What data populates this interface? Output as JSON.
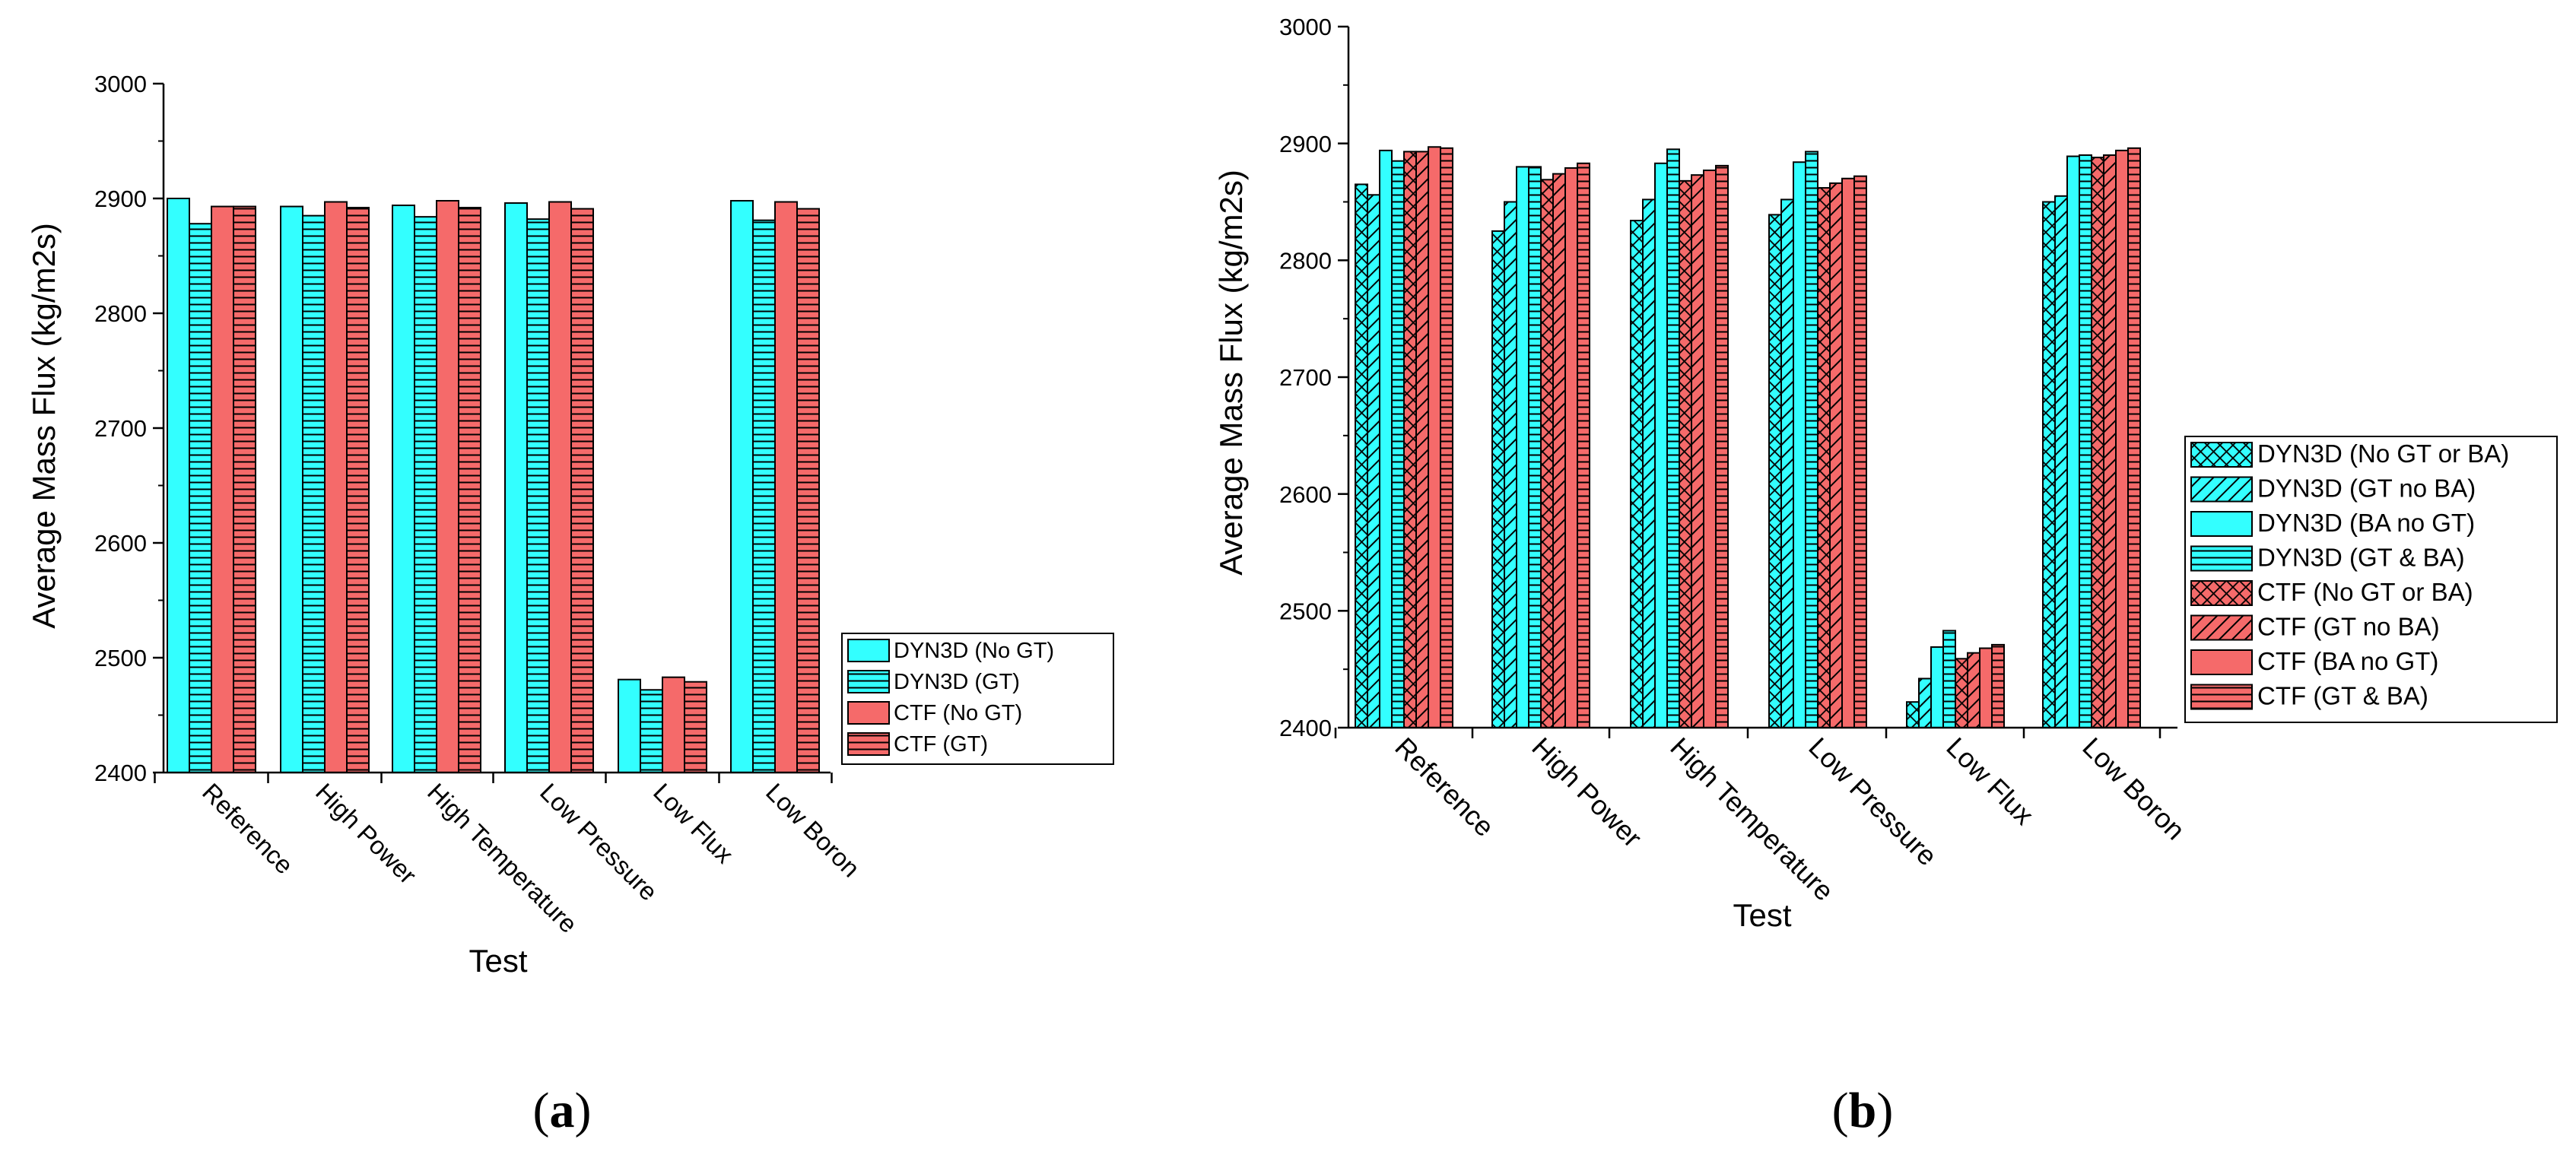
{
  "colors": {
    "dyn3d": "#33FFFF",
    "ctf": "#F56A6A",
    "stroke": "#000000"
  },
  "panels": {
    "a": {
      "label_open": "(",
      "label_letter": "a",
      "label_close": ")"
    },
    "b": {
      "label_open": "(",
      "label_letter": "b",
      "label_close": ")"
    }
  },
  "chart_data": [
    {
      "type": "bar",
      "title": "",
      "xlabel": "Test",
      "ylabel": "Average Mass Flux (kg/m2s)",
      "ylim": [
        2400,
        3000
      ],
      "yticks": [
        2400,
        2500,
        2600,
        2700,
        2800,
        2900,
        3000
      ],
      "ytick_labels": [
        "2400",
        "2500",
        "2600",
        "2700",
        "2800",
        "2900",
        "3000"
      ],
      "categories": [
        "Reference",
        "High Power",
        "High Temperature",
        "Low Pressure",
        "Low Flux",
        "Low Boron"
      ],
      "legend_position": "right",
      "series": [
        {
          "name": "DYN3D (No GT)",
          "color": "#33FFFF",
          "pattern": "solid",
          "values": [
            2900,
            2893,
            2894,
            2896,
            2481,
            2898
          ]
        },
        {
          "name": "DYN3D (GT)",
          "color": "#33FFFF",
          "pattern": "hlines",
          "values": [
            2878,
            2885,
            2884,
            2882,
            2472,
            2881
          ]
        },
        {
          "name": "CTF (No GT)",
          "color": "#F56A6A",
          "pattern": "solid",
          "values": [
            2893,
            2897,
            2898,
            2897,
            2483,
            2897
          ]
        },
        {
          "name": "CTF (GT)",
          "color": "#F56A6A",
          "pattern": "hlines",
          "values": [
            2893,
            2892,
            2892,
            2891,
            2479,
            2891
          ]
        }
      ]
    },
    {
      "type": "bar",
      "title": "",
      "xlabel": "Test",
      "ylabel": "Average Mass Flux (kg/m2s)",
      "ylim": [
        2400,
        3000
      ],
      "yticks": [
        2400,
        2500,
        2600,
        2700,
        2800,
        2900,
        3000
      ],
      "ytick_labels": [
        "2400",
        "2500",
        "2600",
        "2700",
        "2800",
        "2900",
        "3000"
      ],
      "categories": [
        "Reference",
        "High Power",
        "High Temperature",
        "Low Pressure",
        "Low Flux",
        "Low Boron"
      ],
      "legend_position": "right",
      "series": [
        {
          "name": "DYN3D (No GT or BA)",
          "color": "#33FFFF",
          "pattern": "crosshatch",
          "values": [
            2865,
            2825,
            2834,
            2839,
            2422,
            2850
          ]
        },
        {
          "name": "DYN3D (GT no BA)",
          "color": "#33FFFF",
          "pattern": "diag",
          "values": [
            2856,
            2850,
            2852,
            2852,
            2442,
            2855
          ]
        },
        {
          "name": "DYN3D (BA no GT)",
          "color": "#33FFFF",
          "pattern": "solid",
          "values": [
            2894,
            2880,
            2883,
            2884,
            2469,
            2889
          ]
        },
        {
          "name": "DYN3D (GT & BA)",
          "color": "#33FFFF",
          "pattern": "hlines",
          "values": [
            2885,
            2880,
            2895,
            2893,
            2483,
            2890
          ]
        },
        {
          "name": "CTF (No GT or BA)",
          "color": "#F56A6A",
          "pattern": "crosshatch",
          "values": [
            2893,
            2869,
            2868,
            2862,
            2459,
            2888
          ]
        },
        {
          "name": "CTF (GT no BA)",
          "color": "#F56A6A",
          "pattern": "diag",
          "values": [
            2893,
            2874,
            2873,
            2866,
            2464,
            2890
          ]
        },
        {
          "name": "CTF (BA no GT)",
          "color": "#F56A6A",
          "pattern": "solid",
          "values": [
            2897,
            2879,
            2877,
            2870,
            2468,
            2894
          ]
        },
        {
          "name": "CTF (GT & BA)",
          "color": "#F56A6A",
          "pattern": "hlines",
          "values": [
            2896,
            2883,
            2881,
            2872,
            2471,
            2896
          ]
        }
      ]
    }
  ]
}
